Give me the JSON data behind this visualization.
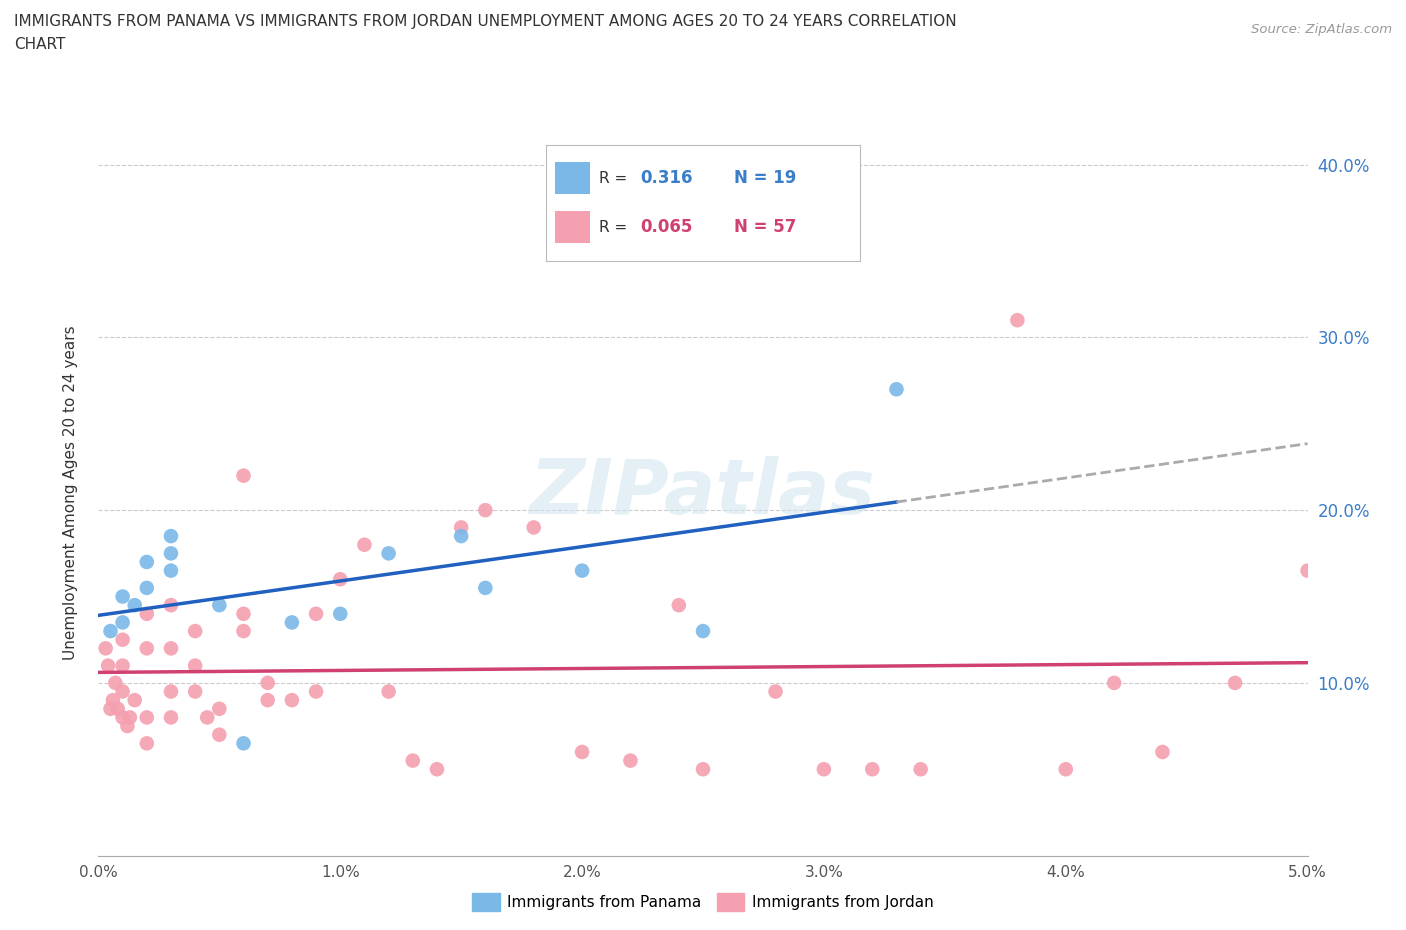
{
  "title_line1": "IMMIGRANTS FROM PANAMA VS IMMIGRANTS FROM JORDAN UNEMPLOYMENT AMONG AGES 20 TO 24 YEARS CORRELATION",
  "title_line2": "CHART",
  "source": "Source: ZipAtlas.com",
  "ylabel": "Unemployment Among Ages 20 to 24 years",
  "xlim": [
    0.0,
    0.05
  ],
  "ylim": [
    0.0,
    0.42
  ],
  "xticks": [
    0.0,
    0.01,
    0.02,
    0.03,
    0.04,
    0.05
  ],
  "xtick_labels": [
    "0.0%",
    "1.0%",
    "2.0%",
    "3.0%",
    "4.0%",
    "5.0%"
  ],
  "yticks": [
    0.0,
    0.1,
    0.2,
    0.3,
    0.4
  ],
  "ytick_labels": [
    "",
    "10.0%",
    "20.0%",
    "30.0%",
    "40.0%"
  ],
  "panama_color": "#7ab8e8",
  "jordan_color": "#f4a0b0",
  "panama_line_color": "#2060c0",
  "jordan_line_color": "#d04070",
  "panama_R": 0.316,
  "panama_N": 19,
  "jordan_R": 0.065,
  "jordan_N": 57,
  "watermark": "ZIPatlas",
  "panama_x": [
    0.0005,
    0.001,
    0.001,
    0.0015,
    0.002,
    0.002,
    0.003,
    0.003,
    0.003,
    0.005,
    0.006,
    0.008,
    0.01,
    0.012,
    0.015,
    0.016,
    0.02,
    0.025,
    0.033
  ],
  "panama_y": [
    0.13,
    0.135,
    0.15,
    0.145,
    0.155,
    0.17,
    0.175,
    0.185,
    0.165,
    0.145,
    0.065,
    0.135,
    0.14,
    0.175,
    0.185,
    0.155,
    0.165,
    0.13,
    0.27
  ],
  "jordan_x": [
    0.0003,
    0.0004,
    0.0005,
    0.0006,
    0.0007,
    0.0008,
    0.001,
    0.001,
    0.001,
    0.001,
    0.0012,
    0.0013,
    0.0015,
    0.002,
    0.002,
    0.002,
    0.002,
    0.003,
    0.003,
    0.003,
    0.003,
    0.004,
    0.004,
    0.004,
    0.0045,
    0.005,
    0.005,
    0.006,
    0.006,
    0.006,
    0.007,
    0.007,
    0.008,
    0.009,
    0.009,
    0.01,
    0.011,
    0.012,
    0.013,
    0.014,
    0.015,
    0.016,
    0.018,
    0.02,
    0.022,
    0.024,
    0.025,
    0.028,
    0.03,
    0.032,
    0.034,
    0.038,
    0.04,
    0.042,
    0.044,
    0.047,
    0.05
  ],
  "jordan_y": [
    0.12,
    0.11,
    0.085,
    0.09,
    0.1,
    0.085,
    0.08,
    0.095,
    0.11,
    0.125,
    0.075,
    0.08,
    0.09,
    0.065,
    0.08,
    0.12,
    0.14,
    0.08,
    0.095,
    0.12,
    0.145,
    0.095,
    0.11,
    0.13,
    0.08,
    0.07,
    0.085,
    0.13,
    0.14,
    0.22,
    0.09,
    0.1,
    0.09,
    0.095,
    0.14,
    0.16,
    0.18,
    0.095,
    0.055,
    0.05,
    0.19,
    0.2,
    0.19,
    0.06,
    0.055,
    0.145,
    0.05,
    0.095,
    0.05,
    0.05,
    0.05,
    0.31,
    0.05,
    0.1,
    0.06,
    0.1,
    0.165
  ]
}
